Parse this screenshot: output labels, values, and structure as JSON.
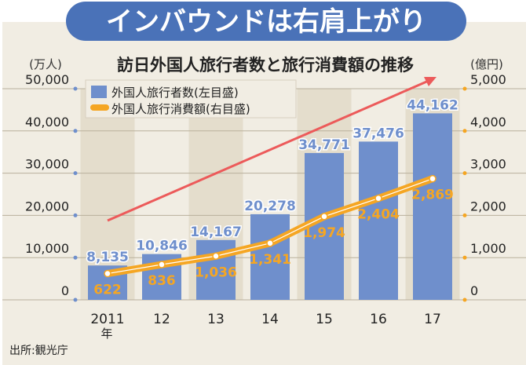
{
  "banner": "インバウンドは右肩上がり",
  "source": "出所:観光庁",
  "colors": {
    "bar": "#6f8fcc",
    "line": "#f5a623",
    "trend_arrow": "#ec5a5a",
    "banner": "#4a72b8",
    "background": "#f1ede3",
    "stripe": "#e4ddcc"
  },
  "chart_data": {
    "type": "bar+line",
    "title": "訪日外国人旅行者数と旅行消費額の推移",
    "categories": [
      "2011",
      "12",
      "13",
      "14",
      "15",
      "16",
      "17"
    ],
    "x_unit_label": "年",
    "left_axis": {
      "unit": "(万人)",
      "ylim": [
        0,
        50000
      ],
      "ticks": [
        "0",
        "10,000",
        "20,000",
        "30,000",
        "40,000",
        "50,000"
      ]
    },
    "right_axis": {
      "unit": "(億円)",
      "ylim": [
        0,
        5000
      ],
      "ticks": [
        "0",
        "1,000",
        "2,000",
        "3,000",
        "4,000",
        "5,000"
      ]
    },
    "grid": true,
    "legend_position": "top-left",
    "series": [
      {
        "name": "外国人旅行者数(左目盛)",
        "type": "bar",
        "axis": "left",
        "values": [
          8135,
          10846,
          14167,
          20278,
          34771,
          37476,
          44162
        ],
        "labels": [
          "8,135",
          "10,846",
          "14,167",
          "20,278",
          "34,771",
          "37,476",
          "44,162"
        ]
      },
      {
        "name": "外国人旅行消費額(右目盛)",
        "type": "line",
        "axis": "right",
        "values": [
          622,
          836,
          1036,
          1341,
          1974,
          2404,
          2869
        ],
        "labels": [
          "622",
          "836",
          "1,036",
          "1,341",
          "1,974",
          "2,404",
          "2,869"
        ]
      }
    ],
    "annotations": [
      {
        "type": "upward-trend-arrow"
      }
    ]
  }
}
